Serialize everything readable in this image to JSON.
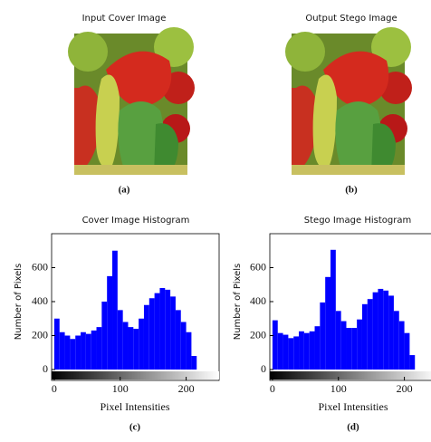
{
  "images": [
    {
      "title": "Input Cover Image",
      "caption": "(a)"
    },
    {
      "title": "Output Stego Image",
      "caption": "(b)"
    }
  ],
  "chart_data": [
    {
      "type": "histogram",
      "title": "Cover Image Histogram",
      "x_label": "Pixel Intensities",
      "y_label": "Number of Pixels",
      "caption": "(c)",
      "color": "#0000ff",
      "bins": [
        0,
        8,
        16,
        24,
        32,
        40,
        48,
        56,
        64,
        72,
        80,
        88,
        96,
        104,
        112,
        120,
        128,
        136,
        144,
        152,
        160,
        168,
        176,
        184,
        192,
        200,
        208,
        216,
        224,
        232,
        240,
        248,
        256
      ],
      "values": [
        300,
        220,
        200,
        180,
        200,
        220,
        210,
        230,
        250,
        400,
        550,
        700,
        350,
        280,
        250,
        240,
        300,
        380,
        420,
        450,
        480,
        470,
        430,
        350,
        280,
        220,
        80,
        0,
        0,
        0,
        0,
        0
      ],
      "xlim": [
        -4,
        250
      ],
      "xticks": [
        0,
        100,
        200
      ],
      "ylim": [
        0,
        800
      ],
      "yticks": [
        0,
        200,
        400,
        600
      ]
    },
    {
      "type": "histogram",
      "title": "Stego Image Histogram",
      "x_label": "Pixel Intensities",
      "y_label": "Number of Pixels",
      "caption": "(d)",
      "color": "#0000ff",
      "bins": [
        0,
        8,
        16,
        24,
        32,
        40,
        48,
        56,
        64,
        72,
        80,
        88,
        96,
        104,
        112,
        120,
        128,
        136,
        144,
        152,
        160,
        168,
        176,
        184,
        192,
        200,
        208,
        216,
        224,
        232,
        240,
        248,
        256
      ],
      "values": [
        290,
        215,
        205,
        185,
        195,
        225,
        215,
        225,
        255,
        395,
        545,
        705,
        345,
        285,
        245,
        245,
        295,
        385,
        415,
        455,
        475,
        465,
        435,
        345,
        285,
        215,
        85,
        0,
        0,
        0,
        0,
        0
      ],
      "xlim": [
        -4,
        250
      ],
      "xticks": [
        0,
        100,
        200
      ],
      "ylim": [
        0,
        800
      ],
      "yticks": [
        0,
        200,
        400,
        600
      ]
    }
  ]
}
